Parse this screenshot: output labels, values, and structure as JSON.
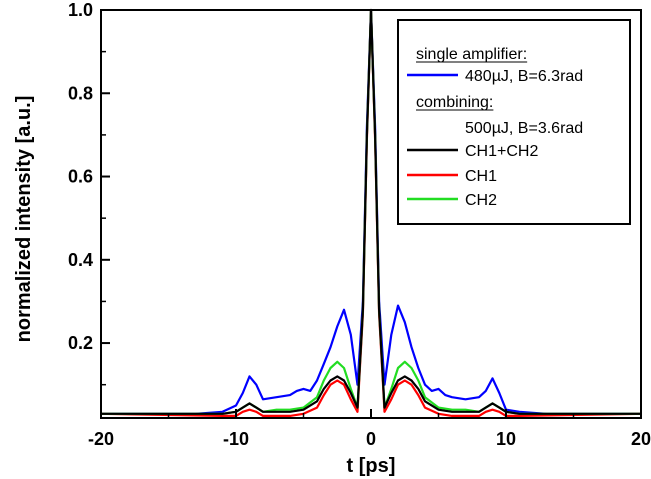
{
  "chart_data": {
    "type": "line",
    "title": "",
    "xlabel": "t [ps]",
    "ylabel": "normalized intensity [a.u.]",
    "xlim": [
      -20,
      20
    ],
    "ylim": [
      0.02,
      1.0
    ],
    "x_ticks": [
      -20,
      -10,
      0,
      10,
      20
    ],
    "y_ticks": [
      0.2,
      0.4,
      0.6,
      0.8,
      1.0
    ],
    "y_tick_labels": [
      "0.2",
      "0.4",
      "0.6",
      "0.8",
      "1.0"
    ],
    "grid": false,
    "legend_position": "top-right",
    "legend_heading_1": "single amplifier:",
    "legend_heading_2": "combining:",
    "legend_note": "500µJ, B=3.6rad",
    "series": [
      {
        "name": "480µJ, B=6.3rad",
        "color": "#0000ff",
        "x": [
          -20,
          -13,
          -11,
          -10,
          -9.5,
          -9,
          -8.5,
          -8,
          -7,
          -6,
          -5.5,
          -5,
          -4.5,
          -4,
          -3.5,
          -3,
          -2.5,
          -2,
          -1.5,
          -1,
          -0.6,
          -0.3,
          0,
          0.3,
          0.6,
          1,
          1.5,
          2,
          2.5,
          3,
          3.5,
          4,
          4.5,
          5,
          5.5,
          6,
          7,
          8,
          8.5,
          9,
          9.5,
          10,
          11,
          13,
          20
        ],
        "y": [
          0.03,
          0.03,
          0.035,
          0.05,
          0.08,
          0.12,
          0.1,
          0.065,
          0.07,
          0.075,
          0.085,
          0.09,
          0.085,
          0.11,
          0.15,
          0.19,
          0.24,
          0.28,
          0.22,
          0.1,
          0.3,
          0.72,
          1.0,
          0.72,
          0.3,
          0.1,
          0.22,
          0.29,
          0.25,
          0.19,
          0.14,
          0.1,
          0.085,
          0.09,
          0.075,
          0.07,
          0.065,
          0.07,
          0.085,
          0.115,
          0.08,
          0.04,
          0.035,
          0.03,
          0.03
        ]
      },
      {
        "name": "CH1+CH2",
        "color": "#000000",
        "x": [
          -20,
          -11,
          -10,
          -9.5,
          -9,
          -8.5,
          -8,
          -7,
          -6,
          -5,
          -4,
          -3.5,
          -3,
          -2.5,
          -2,
          -1.5,
          -1,
          -0.6,
          -0.3,
          0,
          0.3,
          0.6,
          1,
          1.5,
          2,
          2.5,
          3,
          3.5,
          4,
          5,
          6,
          7,
          8,
          8.5,
          9,
          9.5,
          10,
          11,
          20
        ],
        "y": [
          0.03,
          0.03,
          0.035,
          0.045,
          0.055,
          0.045,
          0.035,
          0.035,
          0.035,
          0.04,
          0.06,
          0.09,
          0.11,
          0.12,
          0.11,
          0.08,
          0.045,
          0.28,
          0.7,
          1.0,
          0.7,
          0.28,
          0.045,
          0.08,
          0.11,
          0.12,
          0.11,
          0.09,
          0.06,
          0.04,
          0.035,
          0.035,
          0.035,
          0.045,
          0.055,
          0.045,
          0.035,
          0.03,
          0.03
        ]
      },
      {
        "name": "CH1",
        "color": "#ff0000",
        "x": [
          -20,
          -11,
          -10,
          -9.5,
          -9,
          -8.5,
          -8,
          -7,
          -6,
          -5,
          -4,
          -3.5,
          -3,
          -2.5,
          -2,
          -1.5,
          -1,
          -0.6,
          -0.3,
          0,
          0.3,
          0.6,
          1,
          1.5,
          2,
          2.5,
          3,
          3.5,
          4,
          5,
          6,
          7,
          8,
          8.5,
          9,
          9.5,
          10,
          11,
          20
        ],
        "y": [
          0.03,
          0.025,
          0.025,
          0.035,
          0.04,
          0.035,
          0.025,
          0.025,
          0.025,
          0.03,
          0.045,
          0.075,
          0.1,
          0.11,
          0.1,
          0.065,
          0.035,
          0.27,
          0.69,
          1.0,
          0.69,
          0.27,
          0.035,
          0.065,
          0.1,
          0.11,
          0.1,
          0.075,
          0.045,
          0.03,
          0.025,
          0.025,
          0.025,
          0.035,
          0.04,
          0.035,
          0.025,
          0.025,
          0.03
        ]
      },
      {
        "name": "CH2",
        "color": "#22dd22",
        "x": [
          -20,
          -11,
          -10,
          -9.5,
          -9,
          -8.5,
          -8,
          -7,
          -6,
          -5,
          -4,
          -3.5,
          -3,
          -2.5,
          -2,
          -1.5,
          -1,
          -0.6,
          -0.3,
          0,
          0.3,
          0.6,
          1,
          1.5,
          2,
          2.5,
          3,
          3.5,
          4,
          5,
          6,
          7,
          8,
          8.5,
          9,
          9.5,
          10,
          11,
          20
        ],
        "y": [
          0.03,
          0.03,
          0.035,
          0.045,
          0.055,
          0.045,
          0.035,
          0.04,
          0.04,
          0.045,
          0.07,
          0.11,
          0.14,
          0.155,
          0.14,
          0.09,
          0.045,
          0.28,
          0.7,
          1.0,
          0.7,
          0.28,
          0.045,
          0.09,
          0.14,
          0.155,
          0.14,
          0.11,
          0.07,
          0.045,
          0.04,
          0.04,
          0.035,
          0.045,
          0.055,
          0.045,
          0.035,
          0.03,
          0.03
        ]
      }
    ]
  }
}
